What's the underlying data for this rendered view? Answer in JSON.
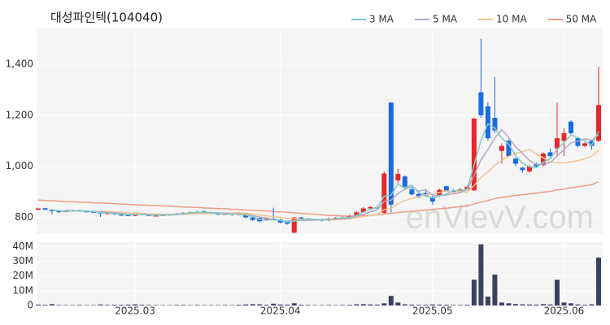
{
  "chart_data": {
    "type": "candlestick",
    "title": "대성파인텍(104040)",
    "watermark": "enVievV.com",
    "categories": [
      null,
      null,
      null,
      null,
      null,
      null,
      null,
      null,
      null,
      null,
      null,
      null,
      null,
      null,
      "2025.03",
      null,
      null,
      null,
      null,
      null,
      null,
      null,
      null,
      null,
      null,
      null,
      null,
      null,
      null,
      null,
      null,
      null,
      null,
      null,
      null,
      "2025.04",
      null,
      null,
      null,
      null,
      null,
      null,
      null,
      null,
      null,
      null,
      null,
      null,
      null,
      null,
      null,
      null,
      null,
      null,
      null,
      null,
      null,
      "2025.05",
      null,
      null,
      null,
      null,
      null,
      null,
      null,
      null,
      null,
      null,
      null,
      null,
      null,
      null,
      null,
      null,
      null,
      null,
      "2025.06",
      null,
      null,
      null,
      null,
      null
    ],
    "open": [
      830,
      836,
      830,
      825,
      822,
      826,
      828,
      825,
      823,
      820,
      815,
      818,
      812,
      810,
      806,
      815,
      812,
      806,
      808,
      810,
      812,
      815,
      818,
      820,
      824,
      818,
      816,
      812,
      815,
      810,
      815,
      800,
      798,
      788,
      795,
      792,
      782,
      740,
      800,
      795,
      790,
      792,
      788,
      795,
      798,
      800,
      808,
      820,
      835,
      840,
      818,
      1250,
      945,
      960,
      910,
      892,
      895,
      880,
      885,
      922,
      905,
      900,
      910,
      906,
      1290,
      1235,
      1190,
      1060,
      1100,
      1030,
      995,
      980,
      1010,
      1005,
      1055,
      1070,
      1100,
      1175,
      1110,
      1080,
      1100,
      1100
    ],
    "high": [
      838,
      838,
      832,
      828,
      830,
      830,
      830,
      828,
      826,
      822,
      820,
      820,
      815,
      812,
      818,
      818,
      814,
      812,
      814,
      815,
      818,
      820,
      824,
      826,
      826,
      822,
      818,
      818,
      816,
      822,
      816,
      802,
      800,
      798,
      838,
      795,
      785,
      802,
      802,
      798,
      795,
      794,
      800,
      802,
      804,
      810,
      825,
      840,
      845,
      845,
      980,
      1250,
      990,
      965,
      915,
      900,
      905,
      885,
      912,
      925,
      912,
      915,
      925,
      1190,
      1500,
      1250,
      1350,
      1090,
      1105,
      1035,
      998,
      1005,
      1015,
      1055,
      1070,
      1250,
      1150,
      1180,
      1115,
      1095,
      1105,
      1390
    ],
    "low": [
      828,
      828,
      812,
      818,
      820,
      824,
      822,
      820,
      818,
      802,
      812,
      810,
      805,
      804,
      805,
      808,
      804,
      805,
      806,
      808,
      810,
      812,
      815,
      816,
      815,
      812,
      808,
      810,
      806,
      808,
      796,
      786,
      780,
      786,
      788,
      776,
      772,
      738,
      792,
      786,
      788,
      784,
      786,
      794,
      795,
      798,
      806,
      818,
      832,
      832,
      815,
      820,
      930,
      915,
      885,
      875,
      880,
      850,
      880,
      900,
      898,
      898,
      906,
      904,
      1190,
      1100,
      1130,
      1010,
      1035,
      1000,
      975,
      975,
      995,
      1000,
      1035,
      1040,
      1040,
      1125,
      1075,
      1075,
      1065,
      1095
    ],
    "close": [
      835,
      830,
      825,
      822,
      826,
      828,
      825,
      823,
      820,
      815,
      818,
      812,
      810,
      808,
      815,
      812,
      806,
      808,
      810,
      812,
      815,
      818,
      820,
      822,
      818,
      816,
      812,
      815,
      810,
      818,
      800,
      790,
      785,
      795,
      792,
      780,
      775,
      800,
      795,
      790,
      792,
      788,
      795,
      798,
      800,
      805,
      820,
      835,
      840,
      838,
      972,
      850,
      970,
      920,
      890,
      880,
      885,
      862,
      908,
      905,
      902,
      910,
      920,
      1187,
      1200,
      1110,
      1140,
      1080,
      1040,
      1010,
      985,
      1000,
      1000,
      1050,
      1040,
      1110,
      1130,
      1130,
      1080,
      1090,
      1080,
      1240
    ],
    "up_color": "#e8262a",
    "down_color": "#1a6be0",
    "ylim": [
      735,
      1540
    ],
    "yticks": [
      800,
      {
        "value": 1000,
        "label": "1,000"
      },
      {
        "value": 1200,
        "label": "1,200"
      },
      {
        "value": 1400,
        "label": "1,400"
      }
    ],
    "grid": true,
    "series": [
      {
        "name": "3 MA",
        "color": "#7fcbc4",
        "values": [
          null,
          null,
          830,
          826,
          824,
          825,
          826,
          825,
          823,
          819,
          818,
          815,
          813,
          810,
          811,
          812,
          811,
          809,
          808,
          810,
          812,
          815,
          818,
          820,
          820,
          819,
          815,
          814,
          812,
          814,
          809,
          803,
          792,
          790,
          791,
          789,
          782,
          785,
          790,
          795,
          792,
          790,
          792,
          794,
          798,
          801,
          808,
          820,
          832,
          838,
          883,
          887,
          931,
          913,
          927,
          897,
          885,
          876,
          885,
          892,
          905,
          906,
          911,
          1006,
          1102,
          1166,
          1150,
          1110,
          1087,
          1043,
          1012,
          998,
          995,
          1017,
          1030,
          1067,
          1093,
          1123,
          1113,
          1100,
          1083,
          1137
        ]
      },
      {
        "name": "5 MA",
        "color": "#b4a7c8",
        "values": [
          null,
          null,
          null,
          null,
          828,
          826,
          825,
          825,
          824,
          822,
          820,
          818,
          815,
          813,
          813,
          813,
          810,
          810,
          810,
          810,
          810,
          813,
          817,
          819,
          819,
          819,
          818,
          817,
          814,
          814,
          811,
          807,
          801,
          798,
          792,
          788,
          785,
          788,
          788,
          788,
          790,
          793,
          792,
          793,
          795,
          797,
          804,
          812,
          822,
          830,
          863,
          867,
          894,
          910,
          920,
          902,
          909,
          887,
          885,
          888,
          892,
          897,
          909,
          965,
          1025,
          1066,
          1111,
          1143,
          1114,
          1076,
          1051,
          1023,
          1007,
          1009,
          1015,
          1040,
          1066,
          1092,
          1098,
          1108,
          1102,
          1124
        ]
      },
      {
        "name": "10 MA",
        "color": "#f3c48d",
        "values": [
          null,
          null,
          null,
          null,
          null,
          null,
          null,
          null,
          null,
          825,
          823,
          822,
          820,
          818,
          817,
          816,
          814,
          813,
          812,
          812,
          812,
          812,
          813,
          815,
          815,
          815,
          816,
          817,
          817,
          818,
          816,
          813,
          809,
          806,
          803,
          800,
          796,
          795,
          793,
          790,
          790,
          790,
          791,
          791,
          792,
          795,
          799,
          803,
          807,
          812,
          830,
          836,
          854,
          866,
          875,
          882,
          889,
          891,
          898,
          904,
          897,
          903,
          898,
          925,
          956,
          979,
          1004,
          1024,
          1039,
          1049,
          1058,
          1067,
          1048,
          1033,
          1017,
          1014,
          1013,
          1018,
          1022,
          1030,
          1039,
          1063
        ]
      },
      {
        "name": "50 MA",
        "color": "#f29b87",
        "values": [
          868,
          866,
          865,
          864,
          862,
          861,
          860,
          859,
          857,
          856,
          855,
          854,
          852,
          851,
          850,
          849,
          847,
          846,
          845,
          844,
          842,
          841,
          840,
          839,
          837,
          836,
          835,
          834,
          832,
          831,
          829,
          828,
          826,
          825,
          823,
          822,
          820,
          818,
          816,
          814,
          812,
          810,
          808,
          807,
          806,
          805,
          806,
          807,
          808,
          810,
          814,
          816,
          819,
          822,
          824,
          826,
          829,
          831,
          834,
          836,
          839,
          842,
          845,
          852,
          860,
          866,
          874,
          878,
          882,
          886,
          889,
          892,
          895,
          899,
          902,
          907,
          911,
          916,
          920,
          924,
          928,
          940
        ]
      }
    ],
    "volume": {
      "color": "#3d4160",
      "ylim": [
        0,
        43000000
      ],
      "yticks": [
        0,
        {
          "value": 10000000,
          "label": "10M"
        },
        {
          "value": 20000000,
          "label": "20M"
        },
        {
          "value": 30000000,
          "label": "30M"
        },
        {
          "value": 40000000,
          "label": "40M"
        }
      ],
      "values": [
        600000,
        500000,
        900000,
        400000,
        300000,
        300000,
        400000,
        300000,
        300000,
        700000,
        400000,
        500000,
        500000,
        600000,
        800000,
        500000,
        400000,
        300000,
        300000,
        300000,
        400000,
        400000,
        300000,
        400000,
        300000,
        300000,
        300000,
        400000,
        300000,
        500000,
        700000,
        900000,
        800000,
        500000,
        1200000,
        700000,
        600000,
        1500000,
        500000,
        400000,
        300000,
        300000,
        400000,
        300000,
        400000,
        500000,
        800000,
        900000,
        700000,
        600000,
        1500000,
        6500000,
        2000000,
        800000,
        600000,
        500000,
        500000,
        700000,
        600000,
        500000,
        400000,
        400000,
        500000,
        17500000,
        41500000,
        6000000,
        21000000,
        2000000,
        1500000,
        1000000,
        800000,
        700000,
        600000,
        900000,
        700000,
        17500000,
        2000000,
        1500000,
        700000,
        500000,
        800000,
        32500000
      ]
    }
  }
}
